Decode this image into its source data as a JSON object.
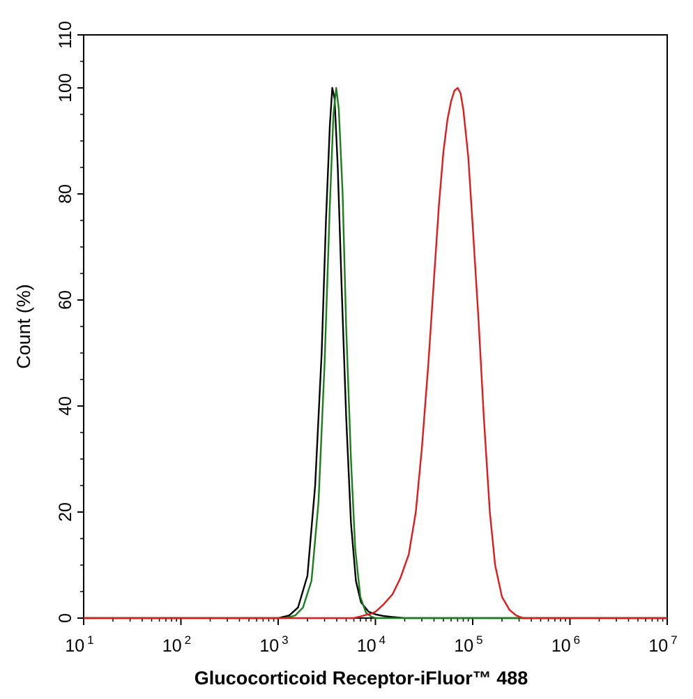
{
  "chart_data": {
    "type": "line",
    "xlabel": "Glucocorticoid Receptor-iFluor™ 488",
    "ylabel": "Count  (%)",
    "xscale": "log",
    "xlim": [
      10,
      10000000
    ],
    "ylim": [
      0,
      110
    ],
    "x_ticks": [
      {
        "value": 10,
        "base": "10",
        "exp": "1"
      },
      {
        "value": 100,
        "base": "10",
        "exp": "2"
      },
      {
        "value": 1000,
        "base": "10",
        "exp": "3"
      },
      {
        "value": 10000,
        "base": "10",
        "exp": "4"
      },
      {
        "value": 100000,
        "base": "10",
        "exp": "5"
      },
      {
        "value": 1000000,
        "base": "10",
        "exp": "6"
      },
      {
        "value": 10000000,
        "base": "10",
        "exp": "7"
      }
    ],
    "y_ticks": [
      0,
      20,
      40,
      60,
      80,
      100,
      110
    ],
    "grid": false,
    "legend": "none",
    "series": [
      {
        "color": "#000000",
        "points": [
          [
            10,
            0
          ],
          [
            1000,
            0
          ],
          [
            1300,
            0.5
          ],
          [
            1600,
            2
          ],
          [
            2000,
            8
          ],
          [
            2400,
            25
          ],
          [
            2800,
            50
          ],
          [
            3100,
            75
          ],
          [
            3400,
            93
          ],
          [
            3600,
            100
          ],
          [
            3800,
            98
          ],
          [
            4100,
            85
          ],
          [
            4500,
            62
          ],
          [
            5000,
            38
          ],
          [
            5600,
            18
          ],
          [
            6300,
            7
          ],
          [
            7100,
            3
          ],
          [
            8500,
            1.2
          ],
          [
            10000,
            0.7
          ],
          [
            12000,
            0.4
          ],
          [
            15000,
            0.2
          ],
          [
            20000,
            0
          ],
          [
            10000000,
            0
          ]
        ]
      },
      {
        "color": "#1a7f1a",
        "points": [
          [
            10,
            0
          ],
          [
            1200,
            0
          ],
          [
            1500,
            0.5
          ],
          [
            1800,
            2
          ],
          [
            2200,
            7
          ],
          [
            2600,
            22
          ],
          [
            3000,
            48
          ],
          [
            3400,
            78
          ],
          [
            3700,
            95
          ],
          [
            3950,
            100
          ],
          [
            4200,
            96
          ],
          [
            4600,
            80
          ],
          [
            5000,
            55
          ],
          [
            5600,
            30
          ],
          [
            6200,
            13
          ],
          [
            7000,
            4
          ],
          [
            8000,
            1
          ],
          [
            9000,
            0.3
          ],
          [
            10000,
            0
          ],
          [
            10000000,
            0
          ]
        ]
      },
      {
        "color": "#e01a1a",
        "points": [
          [
            10,
            0
          ],
          [
            6000,
            0
          ],
          [
            7000,
            0.3
          ],
          [
            8000,
            0.6
          ],
          [
            9000,
            0.8
          ],
          [
            10000,
            1.2
          ],
          [
            12000,
            2.5
          ],
          [
            15000,
            4.5
          ],
          [
            18000,
            7.5
          ],
          [
            22000,
            12
          ],
          [
            26000,
            20
          ],
          [
            30000,
            32
          ],
          [
            35000,
            48
          ],
          [
            40000,
            64
          ],
          [
            45000,
            78
          ],
          [
            50000,
            88
          ],
          [
            55000,
            94
          ],
          [
            60000,
            97.5
          ],
          [
            65000,
            99.5
          ],
          [
            70000,
            100
          ],
          [
            75000,
            99
          ],
          [
            80000,
            96
          ],
          [
            90000,
            87
          ],
          [
            100000,
            74
          ],
          [
            115000,
            56
          ],
          [
            130000,
            38
          ],
          [
            150000,
            20
          ],
          [
            170000,
            10
          ],
          [
            200000,
            4
          ],
          [
            240000,
            1.5
          ],
          [
            280000,
            0.5
          ],
          [
            330000,
            0
          ],
          [
            10000000,
            0
          ]
        ]
      }
    ]
  }
}
